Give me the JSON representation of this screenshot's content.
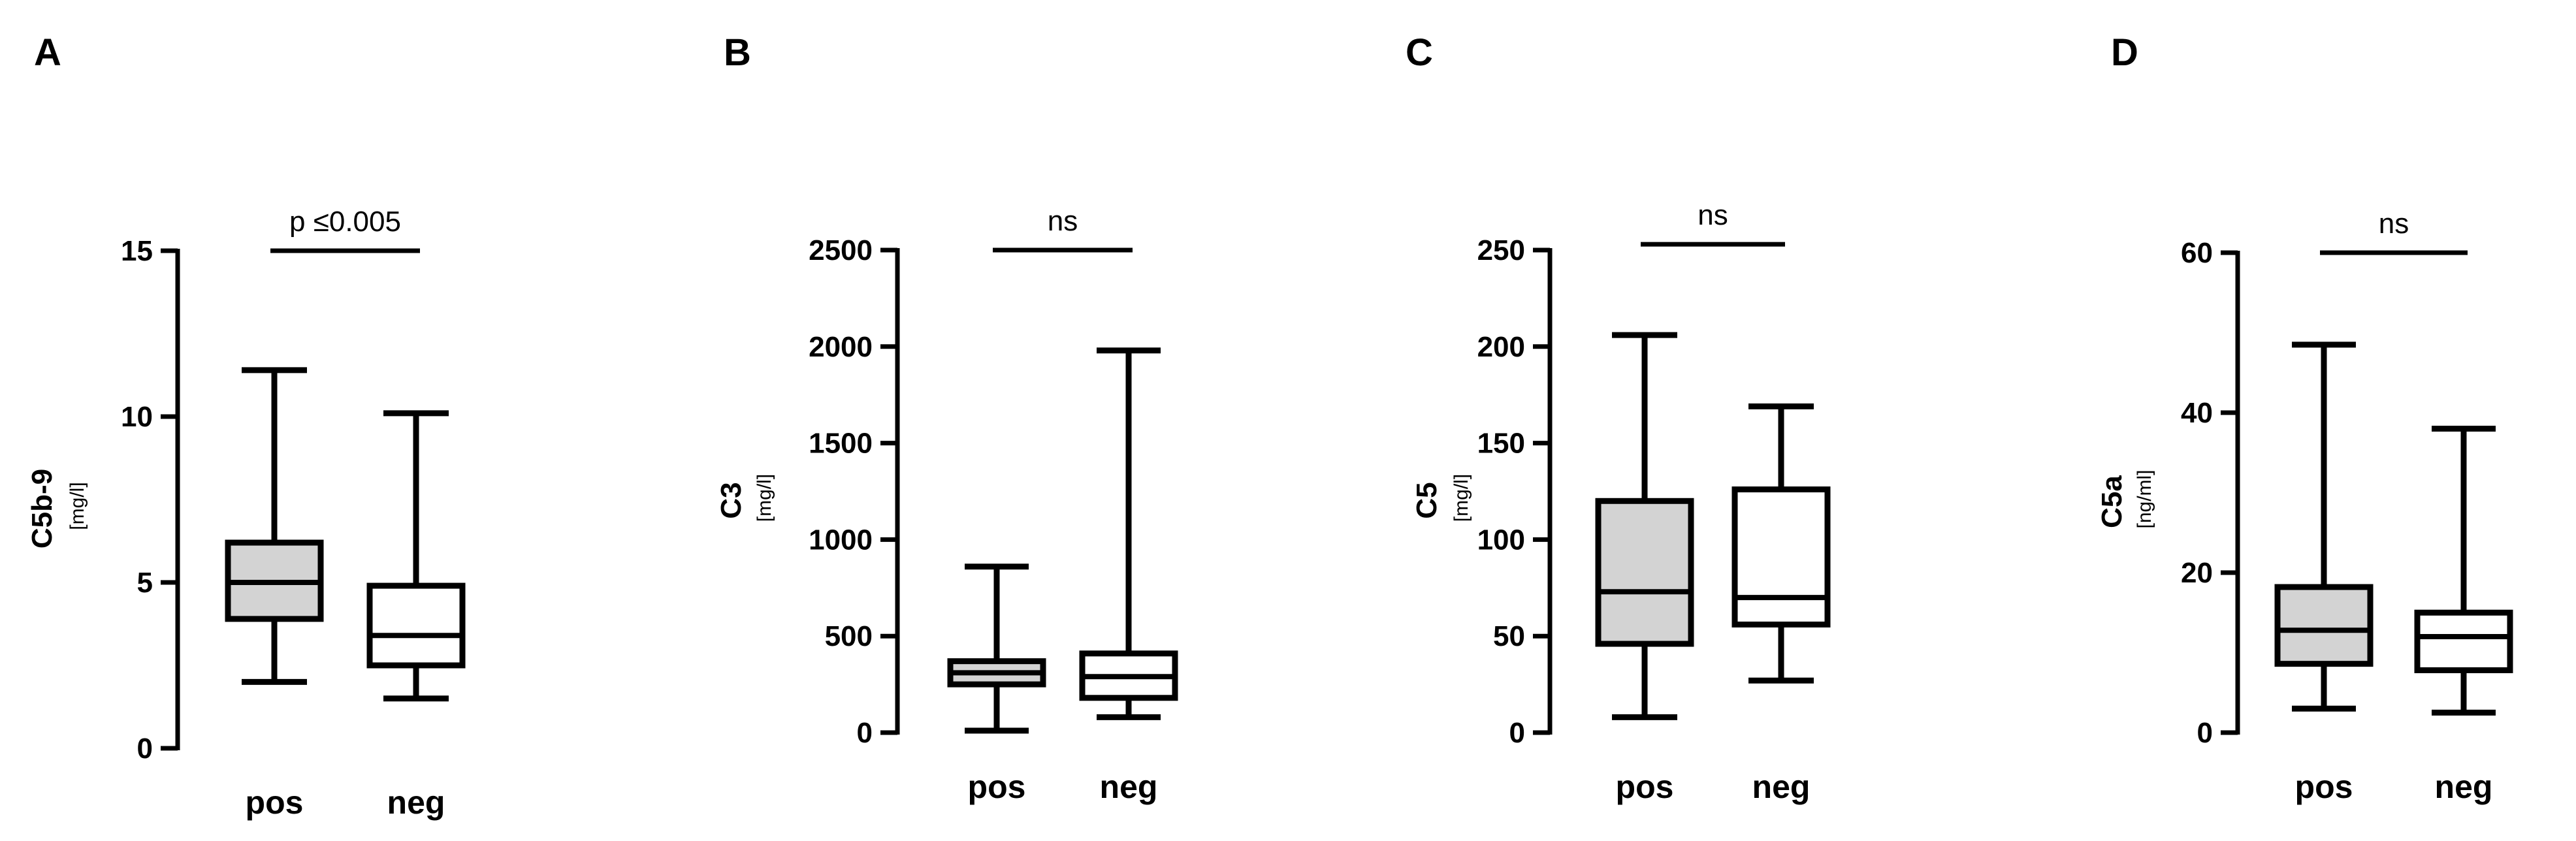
{
  "colors": {
    "pos_fill": "#d3d3d3",
    "neg_fill": "#ffffff",
    "stroke": "#000000",
    "median_on_neg": "#000000",
    "median_on_pos": "#000000"
  },
  "chart_data": [
    {
      "type": "box",
      "panel_label": "A",
      "ylabel": "C5b-9",
      "yunit": "[mg/l]",
      "ylim": [
        0,
        15
      ],
      "yticks": [
        "0",
        "5",
        "10",
        "15"
      ],
      "ytick_values": [
        0,
        5,
        10,
        15
      ],
      "categories": [
        "pos",
        "neg"
      ],
      "boxes": [
        {
          "category": "pos",
          "min": 2.0,
          "q1": 3.9,
          "median": 5.0,
          "q3": 6.2,
          "max": 11.4
        },
        {
          "category": "neg",
          "min": 1.5,
          "q1": 2.5,
          "median": 3.4,
          "q3": 4.9,
          "max": 10.1
        }
      ],
      "significance": {
        "label": "p ≤0.005",
        "y": 15
      }
    },
    {
      "type": "box",
      "panel_label": "B",
      "ylabel": "C3",
      "yunit": "[mg/l]",
      "ylim": [
        0,
        2500
      ],
      "yticks": [
        "0",
        "500",
        "1000",
        "1500",
        "2000",
        "2500"
      ],
      "ytick_values": [
        0,
        500,
        1000,
        1500,
        2000,
        2500
      ],
      "categories": [
        "pos",
        "neg"
      ],
      "boxes": [
        {
          "category": "pos",
          "min": 10,
          "q1": 250,
          "median": 310,
          "q3": 370,
          "max": 860
        },
        {
          "category": "neg",
          "min": 80,
          "q1": 180,
          "median": 290,
          "q3": 410,
          "max": 1980
        }
      ],
      "significance": {
        "label": "ns",
        "y": 2500
      }
    },
    {
      "type": "box",
      "panel_label": "C",
      "ylabel": "C5",
      "yunit": "[mg/l]",
      "ylim": [
        0,
        250
      ],
      "yticks": [
        "0",
        "50",
        "100",
        "150",
        "200",
        "250"
      ],
      "ytick_values": [
        0,
        50,
        100,
        150,
        200,
        250
      ],
      "categories": [
        "pos",
        "neg"
      ],
      "boxes": [
        {
          "category": "pos",
          "min": 8,
          "q1": 46,
          "median": 73,
          "q3": 120,
          "max": 206
        },
        {
          "category": "neg",
          "min": 27,
          "q1": 56,
          "median": 70,
          "q3": 126,
          "max": 169
        }
      ],
      "significance": {
        "label": "ns",
        "y": 253
      }
    },
    {
      "type": "box",
      "panel_label": "D",
      "ylabel": "C5a",
      "yunit": "[ng/ml]",
      "ylim": [
        0,
        60
      ],
      "yticks": [
        "0",
        "20",
        "40",
        "60"
      ],
      "ytick_values": [
        0,
        20,
        40,
        60
      ],
      "categories": [
        "pos",
        "neg"
      ],
      "boxes": [
        {
          "category": "pos",
          "min": 3,
          "q1": 8.6,
          "median": 12.8,
          "q3": 18.2,
          "max": 48.5
        },
        {
          "category": "neg",
          "min": 2.5,
          "q1": 7.8,
          "median": 12,
          "q3": 15,
          "max": 38
        }
      ],
      "significance": {
        "label": "ns",
        "y": 60
      }
    }
  ]
}
